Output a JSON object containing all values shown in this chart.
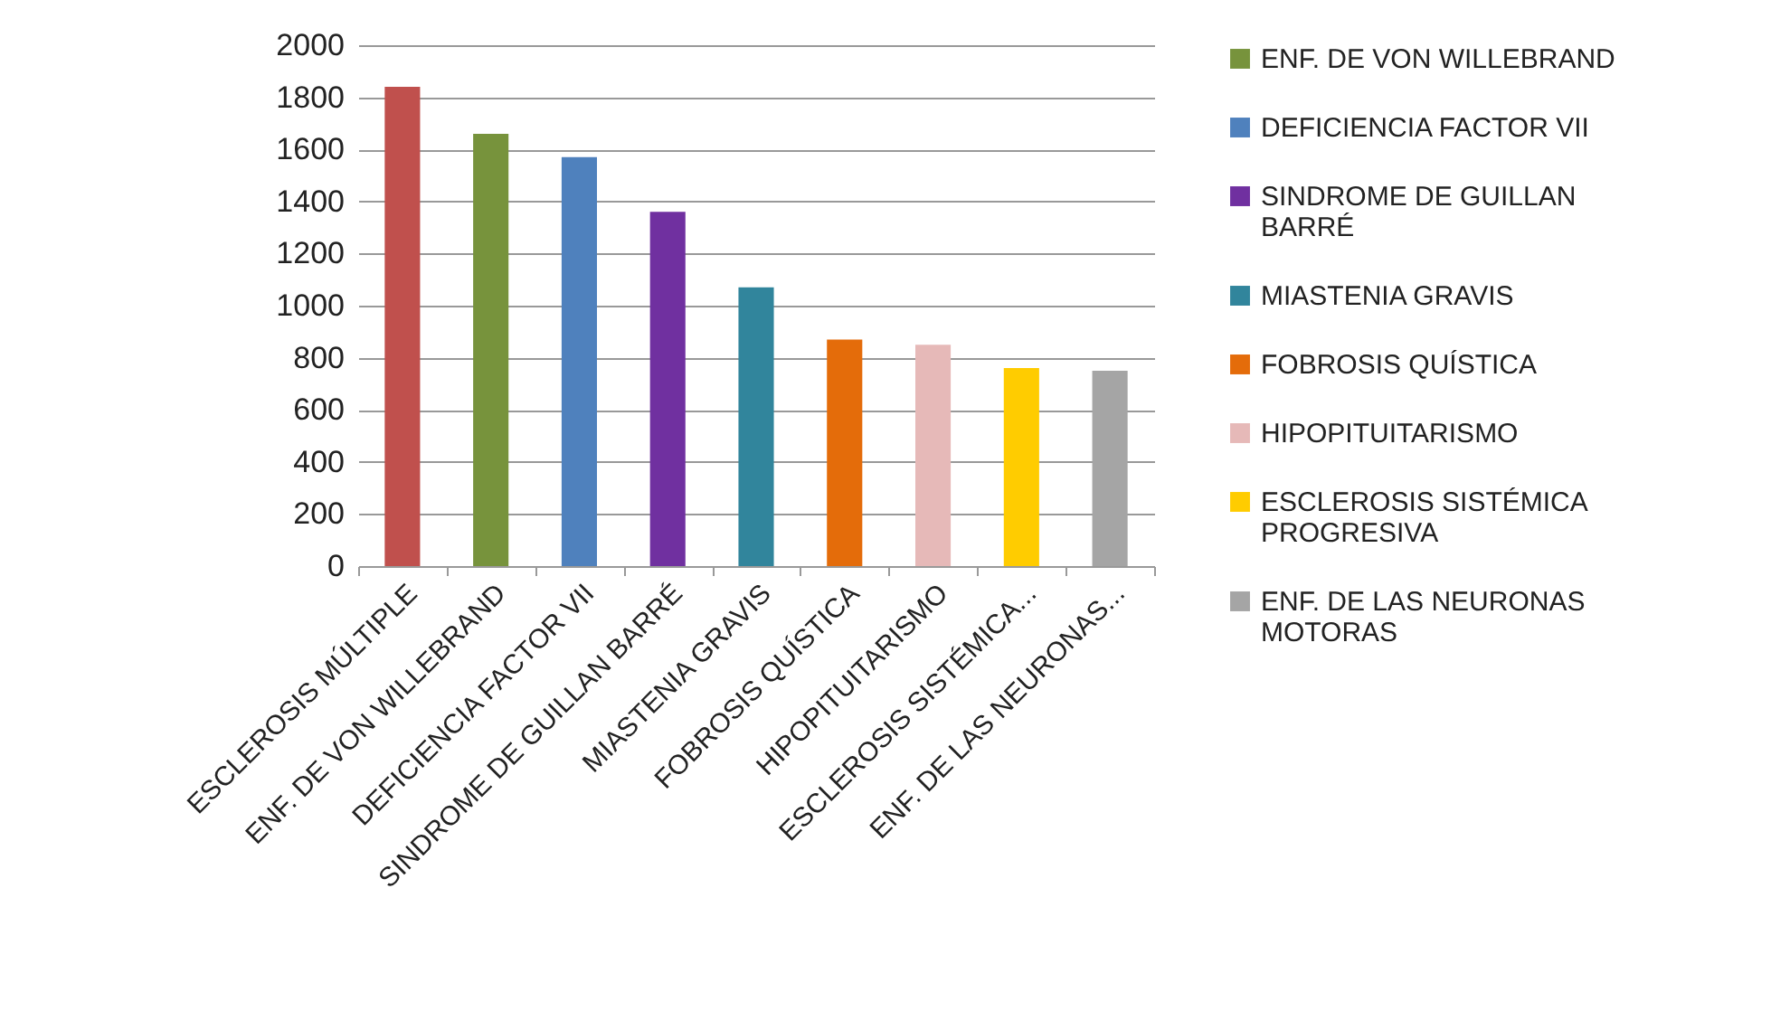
{
  "chart_data": {
    "type": "bar",
    "categories": [
      "ESCLEROSIS MÚLTIPLE",
      "ENF. DE VON WILLEBRAND",
      "DEFICIENCIA FACTOR VII",
      "SINDROME DE GUILLAN BARRÉ",
      "MIASTENIA GRAVIS",
      "FOBROSIS QUÍSTICA",
      "HIPOPITUITARISMO",
      "ESCLEROSIS SISTÉMICA...",
      "ENF. DE LAS NEURONAS..."
    ],
    "series": [
      {
        "color": "#c0504d",
        "values": [
          1840,
          null,
          null,
          null,
          null,
          null,
          null,
          null,
          null
        ]
      },
      {
        "name": "ENF. DE VON WILLEBRAND",
        "color": "#77933c",
        "values": [
          null,
          1660,
          null,
          null,
          null,
          null,
          null,
          null,
          null
        ]
      },
      {
        "name": "DEFICIENCIA FACTOR VII",
        "color": "#4f81bd",
        "values": [
          null,
          null,
          1570,
          null,
          null,
          null,
          null,
          null,
          null
        ]
      },
      {
        "name": "SINDROME DE GUILLAN BARRÉ",
        "color": "#7030a0",
        "values": [
          null,
          null,
          null,
          1360,
          null,
          null,
          null,
          null,
          null
        ]
      },
      {
        "name": "MIASTENIA GRAVIS",
        "color": "#31859c",
        "values": [
          null,
          null,
          null,
          null,
          1070,
          null,
          null,
          null,
          null
        ]
      },
      {
        "name": "FOBROSIS QUÍSTICA",
        "color": "#e46c0a",
        "values": [
          null,
          null,
          null,
          null,
          null,
          870,
          null,
          null,
          null
        ]
      },
      {
        "name": "HIPOPITUITARISMO",
        "color": "#e6b9b8",
        "values": [
          null,
          null,
          null,
          null,
          null,
          null,
          850,
          null,
          null
        ]
      },
      {
        "name": "ESCLEROSIS SISTÉMICA PROGRESIVA",
        "color": "#ffcc00",
        "values": [
          null,
          null,
          null,
          null,
          null,
          null,
          null,
          760,
          null
        ]
      },
      {
        "name": "ENF. DE LAS NEURONAS MOTORAS",
        "color": "#a5a5a5",
        "values": [
          null,
          null,
          null,
          null,
          null,
          null,
          null,
          null,
          750
        ]
      }
    ],
    "ylim": [
      0,
      2000
    ],
    "yticks": [
      0,
      200,
      400,
      600,
      800,
      1000,
      1200,
      1400,
      1600,
      1800,
      2000
    ],
    "grid": "y",
    "legend": "right"
  }
}
